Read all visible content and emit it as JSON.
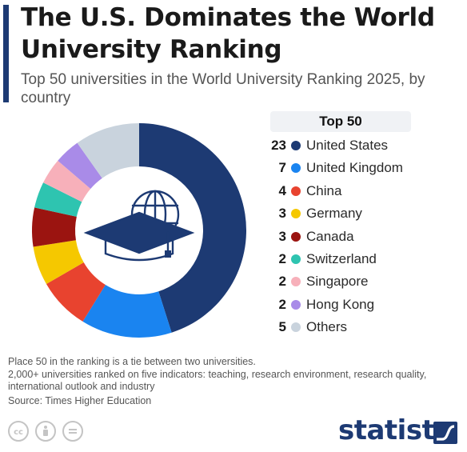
{
  "header": {
    "title": "The U.S. Dominates the World University Ranking",
    "subtitle": "Top 50 universities in the World University Ranking 2025, by country"
  },
  "legend": {
    "header": "Top 50"
  },
  "chart_data": {
    "type": "pie",
    "style": "donut",
    "title": "The U.S. Dominates the World University Ranking",
    "subtitle": "Top 50 universities in the World University Ranking 2025, by country",
    "categories": [
      "United States",
      "United Kingdom",
      "China",
      "Germany",
      "Canada",
      "Switzerland",
      "Singapore",
      "Hong Kong",
      "Others"
    ],
    "values": [
      23,
      7,
      4,
      3,
      3,
      2,
      2,
      2,
      5
    ],
    "colors": [
      "#1d3a73",
      "#1a84f0",
      "#e8432f",
      "#f5c800",
      "#9b1410",
      "#2ec4b0",
      "#f7b0ba",
      "#a98be8",
      "#c9d3dd"
    ],
    "legend_placement": "right"
  },
  "center_icon": "graduation-cap-globe-icon",
  "notes": [
    "Place 50 in the ranking is a tie between two universities.",
    "2,000+ universities ranked on five indicators: teaching, research environment, research quality, international outlook and industry"
  ],
  "source": "Source: Times Higher Education",
  "footer": {
    "license_icons": [
      "cc-icon",
      "attribution-icon",
      "no-derivatives-icon"
    ],
    "brand": "statista",
    "brand_icon": "statista-logo-icon"
  }
}
